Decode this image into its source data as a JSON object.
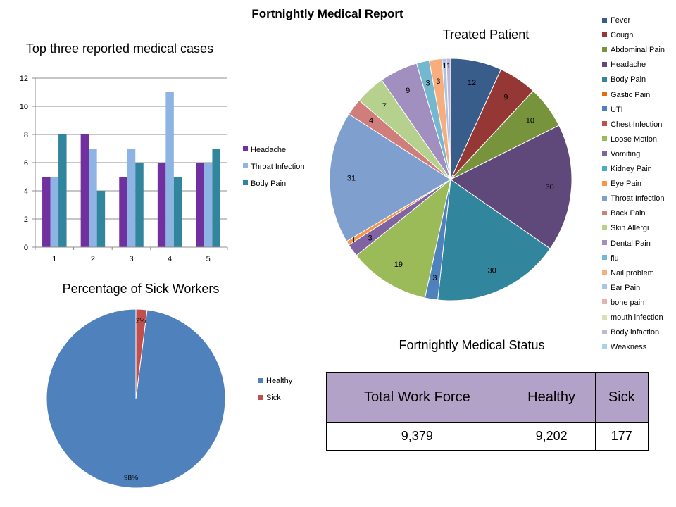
{
  "page": {
    "title": "Fortnightly  Medical Report"
  },
  "chart_data": [
    {
      "id": "bar",
      "type": "bar",
      "title": "Top three reported medical cases",
      "categories": [
        "1",
        "2",
        "3",
        "4",
        "5"
      ],
      "series": [
        {
          "name": "Headache",
          "color": "#7030a0",
          "values": [
            5,
            8,
            5,
            6,
            6
          ]
        },
        {
          "name": "Throat Infection",
          "color": "#8eb4e3",
          "values": [
            5,
            7,
            7,
            11,
            6
          ]
        },
        {
          "name": "Body Pain",
          "color": "#31859c",
          "values": [
            8,
            4,
            6,
            5,
            7
          ]
        }
      ],
      "ylim": [
        0,
        12
      ],
      "yticks": [
        0,
        2,
        4,
        6,
        8,
        10,
        12
      ],
      "grid": true,
      "legend": "right"
    },
    {
      "id": "treated",
      "type": "pie",
      "title": "Treated Patient",
      "legend": "right",
      "slices": [
        {
          "label": "Fever",
          "value": 12,
          "color": "#385d8a"
        },
        {
          "label": "Cough",
          "value": 9,
          "color": "#953735"
        },
        {
          "label": "Abdominal Pain",
          "value": 10,
          "color": "#77933c"
        },
        {
          "label": "Headache",
          "value": 30,
          "color": "#5f497a"
        },
        {
          "label": "Body Pain",
          "value": 30,
          "color": "#31859c"
        },
        {
          "label": "Gastic Pain",
          "value": 0,
          "color": "#e46c0a"
        },
        {
          "label": "UTI",
          "value": 3,
          "color": "#4f81bd"
        },
        {
          "label": "Chest Infection",
          "value": 0,
          "color": "#c0504d"
        },
        {
          "label": "Loose Motion",
          "value": 19,
          "color": "#9bbb59"
        },
        {
          "label": "Vomiting",
          "value": 3,
          "color": "#8064a2"
        },
        {
          "label": "Kidney Pain",
          "value": 0,
          "color": "#4bacc6"
        },
        {
          "label": "Eye Pain",
          "value": 1,
          "color": "#f79646"
        },
        {
          "label": "Throat Infection",
          "value": 31,
          "color": "#7f9fcf"
        },
        {
          "label": "Back Pain",
          "value": 4,
          "color": "#d07e7c"
        },
        {
          "label": "Skin Allergi",
          "value": 7,
          "color": "#b6d18e"
        },
        {
          "label": "Dental Pain",
          "value": 9,
          "color": "#a08fbf"
        },
        {
          "label": "flu",
          "value": 3,
          "color": "#74b8d0"
        },
        {
          "label": "Nail problem",
          "value": 3,
          "color": "#f7ad7e"
        },
        {
          "label": "Ear Pain",
          "value": 1,
          "color": "#a9c4e4"
        },
        {
          "label": "bone pain",
          "value": 0,
          "color": "#e3b2b1"
        },
        {
          "label": "mouth infection",
          "value": 0,
          "color": "#d4e2b6"
        },
        {
          "label": "Body infaction",
          "value": 1,
          "color": "#c1b6d6"
        },
        {
          "label": "Weakness",
          "value": 0,
          "color": "#a5d5e3"
        }
      ]
    },
    {
      "id": "sick",
      "type": "pie",
      "title": "Percentage of Sick Workers",
      "legend": "right",
      "slices": [
        {
          "label": "Healthy",
          "value": 98,
          "display": "98%",
          "color": "#4f81bd"
        },
        {
          "label": "Sick",
          "value": 2,
          "display": "2%",
          "color": "#c0504d"
        }
      ]
    }
  ],
  "status_table": {
    "title": "Fortnightly Medical Status",
    "headers": [
      "Total Work Force",
      "Healthy",
      "Sick"
    ],
    "values": [
      "9,379",
      "9,202",
      "177"
    ]
  }
}
